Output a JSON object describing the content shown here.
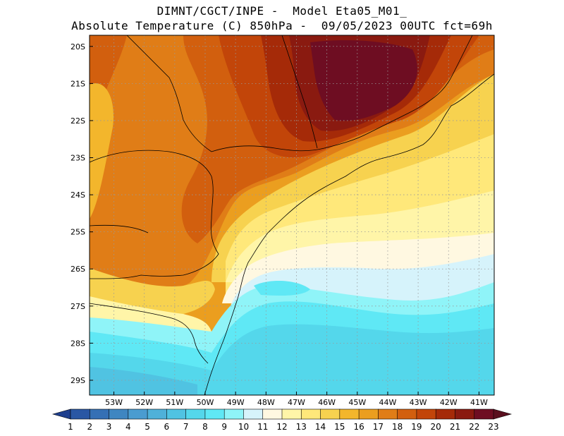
{
  "title": {
    "line1": "DIMNT/CGCT/INPE -  Model Eta05_M01_",
    "line2": "Absolute Temperature (C) 850hPa -  09/05/2023 00UTC fct=69h"
  },
  "map": {
    "lon_range": [
      -53.8,
      -40.5
    ],
    "lat_range": [
      -29.4,
      -19.7
    ],
    "lon_ticks": [
      "53W",
      "52W",
      "51W",
      "50W",
      "49W",
      "48W",
      "47W",
      "46W",
      "45W",
      "44W",
      "43W",
      "42W",
      "41W"
    ],
    "lon_values": [
      -53,
      -52,
      -51,
      -50,
      -49,
      -48,
      -47,
      -46,
      -45,
      -44,
      -43,
      -42,
      -41
    ],
    "lat_ticks": [
      "20S",
      "21S",
      "22S",
      "23S",
      "24S",
      "25S",
      "26S",
      "27S",
      "28S",
      "29S"
    ],
    "lat_values": [
      -20,
      -21,
      -22,
      -23,
      -24,
      -25,
      -26,
      -27,
      -28,
      -29
    ]
  },
  "colorbar": {
    "labels": [
      "1",
      "2",
      "3",
      "4",
      "5",
      "6",
      "7",
      "8",
      "9",
      "10",
      "11",
      "12",
      "13",
      "14",
      "15",
      "16",
      "17",
      "18",
      "19",
      "20",
      "21",
      "22",
      "23"
    ],
    "colors": [
      "#1e3f8e",
      "#2957a4",
      "#3570b5",
      "#3f86c1",
      "#4a9cd0",
      "#4fb1d9",
      "#50c3e2",
      "#54d7eb",
      "#5fe8f5",
      "#8ff4f8",
      "#d6f3fb",
      "#fff8e1",
      "#fff5a8",
      "#ffe87a",
      "#f7d24f",
      "#f3b62c",
      "#eb9e1f",
      "#e07d17",
      "#d25f0e",
      "#c24509",
      "#a52a08",
      "#8a1a10",
      "#6e0d22",
      "#5a0f1e"
    ]
  },
  "legend_colors": {
    "background": "#ffffff",
    "grid": "#999999",
    "coast": "#000000"
  }
}
